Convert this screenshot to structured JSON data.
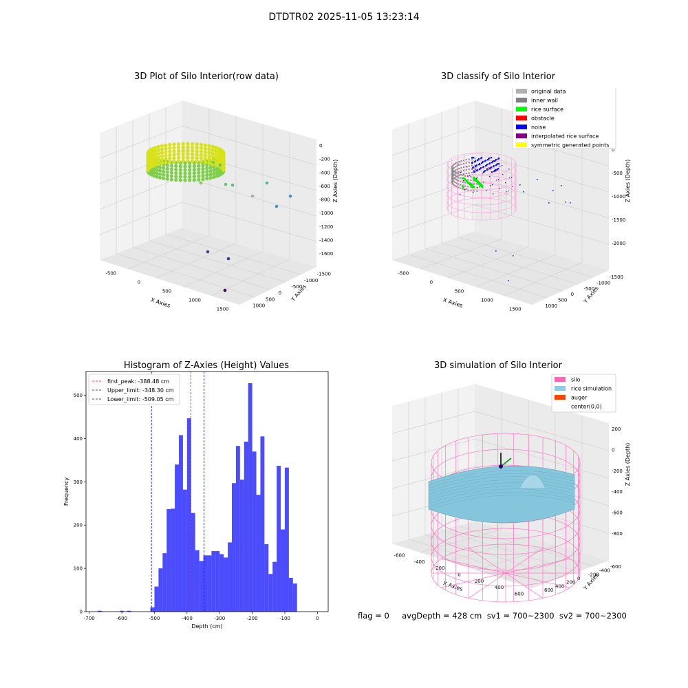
{
  "suptitle": "DTDTR02 2025-11-05 13:23:14",
  "panels": {
    "raw": {
      "title": "3D Plot of Silo Interior(row data)",
      "xlabel": "X Axies",
      "ylabel": "Y Axies",
      "zlabel": "Z Axies (Depth)",
      "xticks": [
        "-500",
        "0",
        "500",
        "1000",
        "1500"
      ],
      "yticks": [
        "1000",
        "500",
        "0",
        "-500",
        "-1000",
        "-1500"
      ],
      "zticks": [
        "0",
        "-200",
        "-400",
        "-600",
        "-800",
        "-1000",
        "-1200",
        "-1400",
        "-1600"
      ]
    },
    "classify": {
      "title": "3D classify of Silo Interior",
      "xlabel": "X Axies",
      "ylabel": "Y Axies",
      "zlabel": "Z Axies (Depth)",
      "xticks": [
        "-500",
        "0",
        "500",
        "1000",
        "1500"
      ],
      "yticks": [
        "1000",
        "500",
        "0",
        "-500",
        "-1000",
        "-1500"
      ],
      "zticks": [
        "0",
        "-500",
        "-1000",
        "-1500",
        "-2000"
      ],
      "legend": [
        {
          "label": "original data",
          "color": "#b0b0b0"
        },
        {
          "label": "inner wall",
          "color": "#808080"
        },
        {
          "label": "rice surface",
          "color": "#00ff00"
        },
        {
          "label": "obstacle",
          "color": "#ff0000"
        },
        {
          "label": "noise",
          "color": "#0000ff"
        },
        {
          "label": "interpolated rice surface",
          "color": "#800080"
        },
        {
          "label": "symmetric generated points",
          "color": "#ffff00"
        }
      ]
    },
    "simulation": {
      "title": "3D simulation of Silo Interior",
      "xlabel": "X Axies",
      "ylabel": "Y Axies",
      "zlabel": "Z Axies (Depth)",
      "xticks": [
        "-600",
        "-400",
        "-200",
        "0",
        "200",
        "400",
        "600"
      ],
      "yticks": [
        "600",
        "400",
        "200",
        "0",
        "-200",
        "-400",
        "-600"
      ],
      "zticks": [
        "200",
        "0",
        "-200",
        "-400",
        "-600",
        "-800"
      ],
      "legend": [
        {
          "label": "silo",
          "color": "#ff69b4"
        },
        {
          "label": "rice simulation",
          "color": "#87ceeb"
        },
        {
          "label": "auger",
          "color": "#ff4500"
        },
        {
          "label": "center(0,0)",
          "color": ""
        }
      ]
    }
  },
  "chart_data": {
    "type": "bar",
    "title": "Histogram of Z-Axies (Height) Values",
    "xlabel": "Depth (cm)",
    "ylabel": "Frequency",
    "xlim": [
      -710,
      33
    ],
    "ylim": [
      0,
      555
    ],
    "xticks": [
      -700,
      -600,
      -500,
      -400,
      -300,
      -200,
      -100,
      0
    ],
    "yticks": [
      0,
      100,
      200,
      300,
      400,
      500
    ],
    "bin_width": 12.5,
    "bin_starts": [
      -525,
      -512.5,
      -500,
      -487.5,
      -475,
      -462.5,
      -450,
      -437.5,
      -425,
      -412.5,
      -400,
      -387.5,
      -375,
      -362.5,
      -350,
      -337.5,
      -325,
      -312.5,
      -300,
      -287.5,
      -275,
      -262.5,
      -250,
      -237.5,
      -225,
      -212.5,
      -200,
      -187.5,
      -175,
      -162.5,
      -150,
      -137.5,
      -125,
      -112.5,
      -100,
      -87.5,
      -75,
      -62.5,
      -50,
      -37.5,
      -25,
      -12.5
    ],
    "values": [
      0,
      10,
      58,
      100,
      135,
      237,
      238,
      340,
      408,
      282,
      447,
      228,
      142,
      117,
      130,
      130,
      140,
      140,
      133,
      125,
      160,
      297,
      383,
      305,
      393,
      528,
      370,
      270,
      405,
      156,
      87,
      115,
      337,
      190,
      333,
      78,
      65,
      0,
      0,
      0,
      0,
      0
    ],
    "sparse_points": [
      {
        "x": -668,
        "y": 2
      },
      {
        "x": -600,
        "y": 2
      },
      {
        "x": -578,
        "y": 2
      }
    ],
    "bar_color": "#0000ff",
    "vlines": [
      {
        "label": "first_peak: -388.48 cm",
        "x": -388.48,
        "color": "#ff0000"
      },
      {
        "label": "Upper_limit: -348.30 cm",
        "x": -348.3,
        "color": "#0000ff"
      },
      {
        "label": "Lower_limit: -509.05 cm",
        "x": -509.05,
        "color": "#0000ff"
      }
    ],
    "legend_position": "top-left"
  },
  "footer": "flag = 0     avgDepth = 428 cm  sv1 = 700~2300  sv2 = 700~2300"
}
